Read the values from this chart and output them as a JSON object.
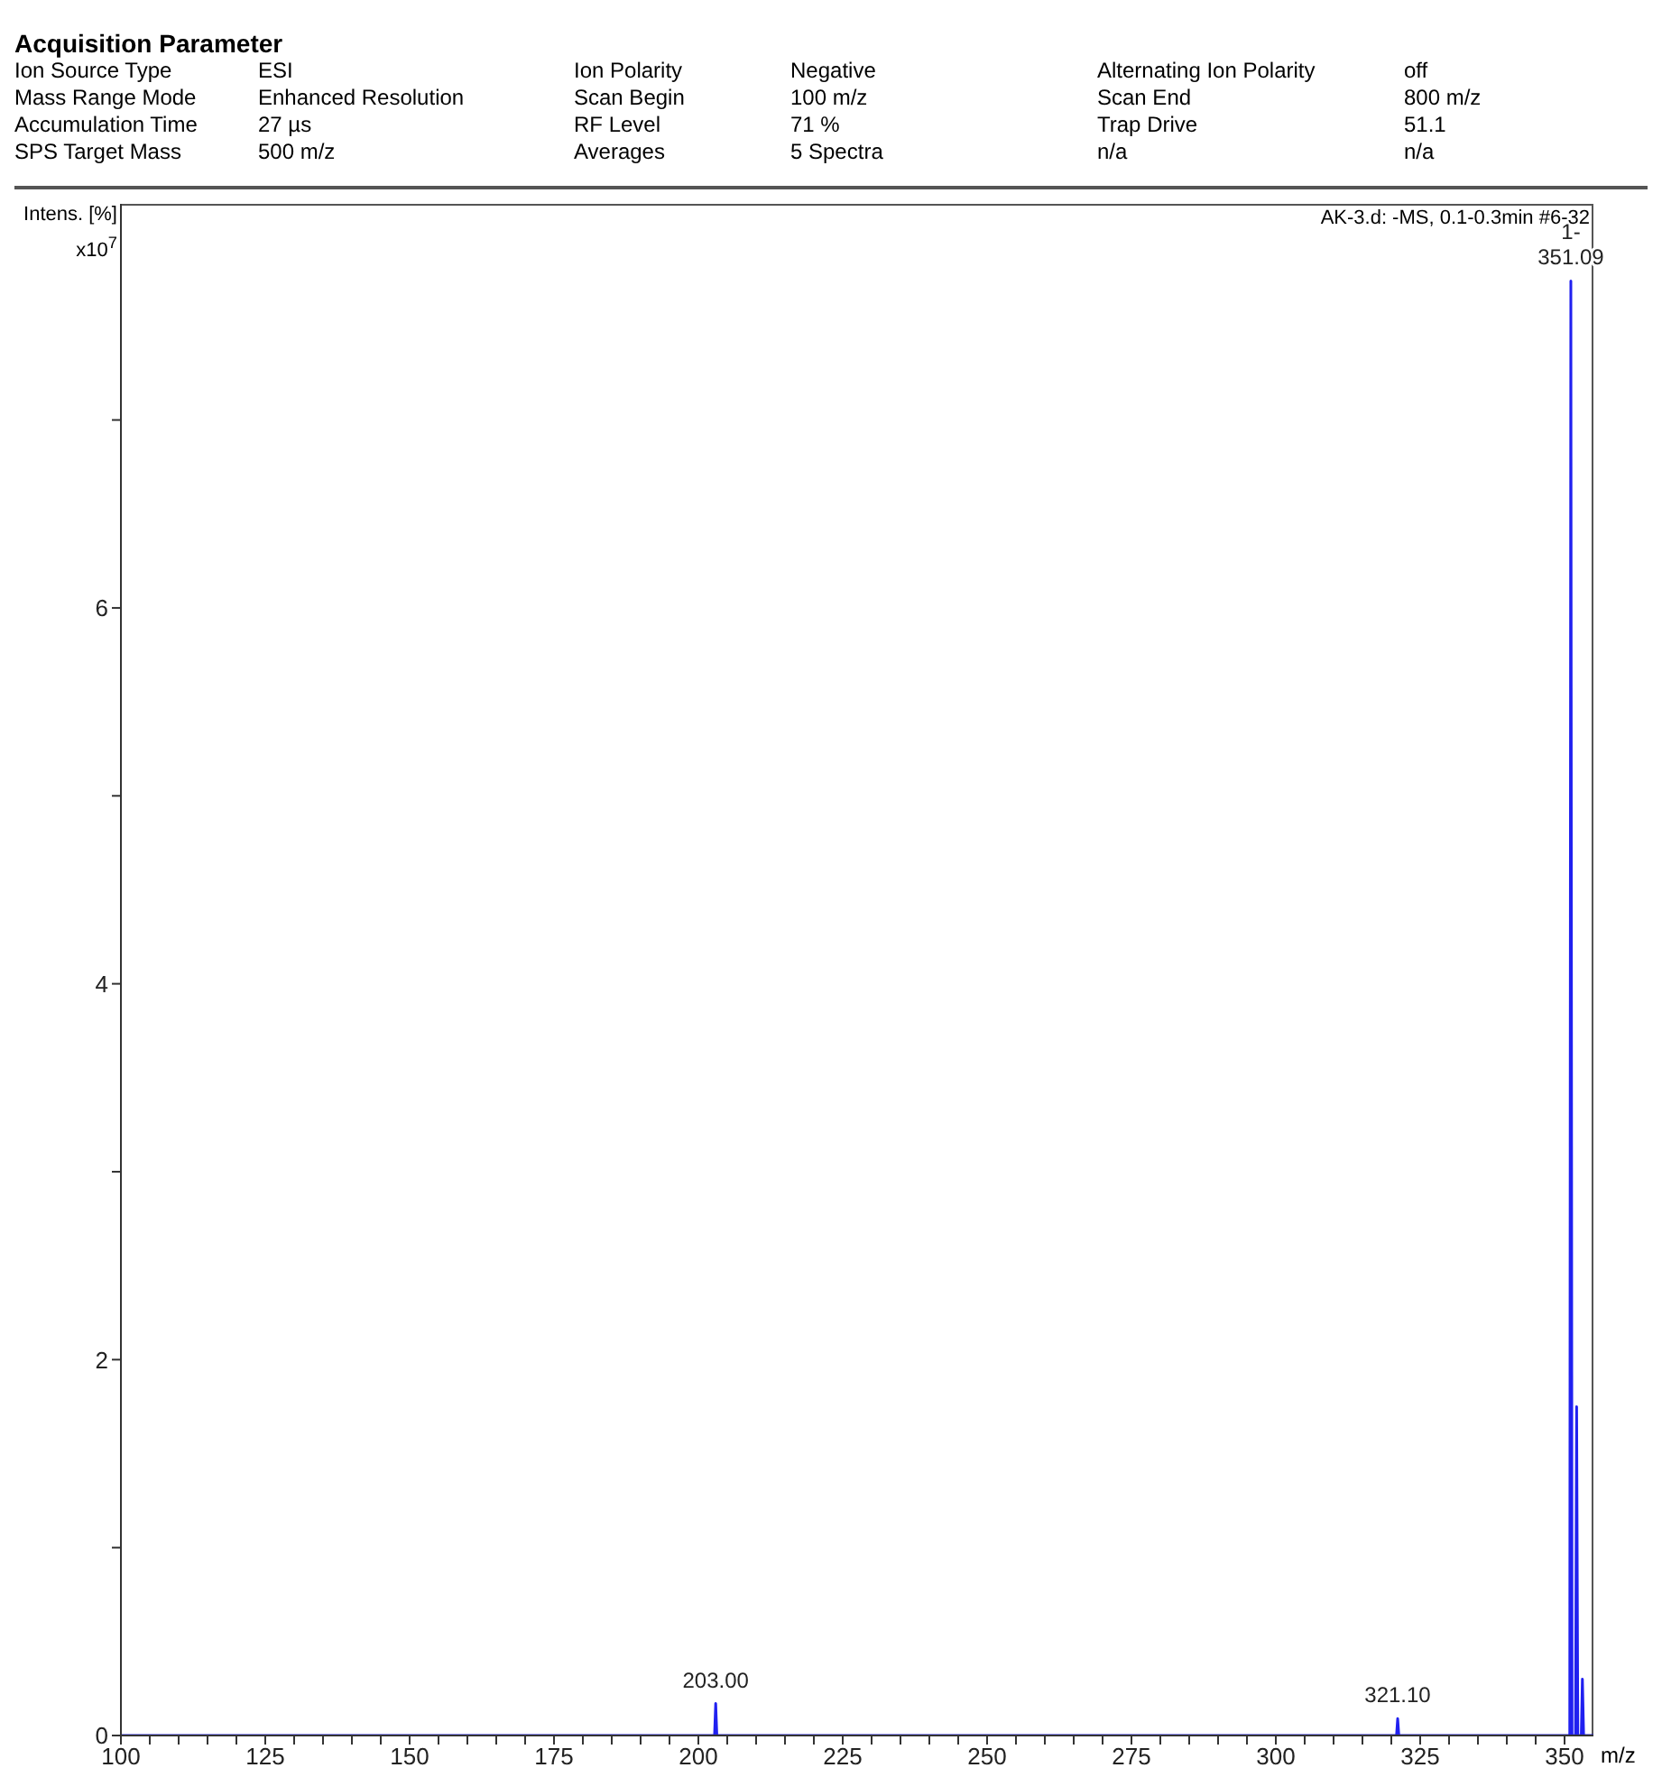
{
  "chart_data": {
    "type": "line",
    "title": "Acquisition Parameter",
    "xlabel": "m/z",
    "ylabel": "Intens. [%]",
    "annotations": [
      "Ion Source Type",
      "ESI",
      "Ion Polarity",
      "Negative",
      "Alternating Ion Polarity",
      "off",
      "Mass Range Mode",
      "Enhanced Resolution",
      "Scan Begin",
      "100 m/z",
      "Scan End",
      "800 m/z",
      "Accumulation Time",
      "27 µs",
      "RF Level",
      "71 %",
      "Trap Drive",
      "51.1",
      "SPS Target Mass",
      "500 m/z",
      "Averages",
      "5 Spectra",
      "n/a",
      "n/a",
      "AK-3.d: -MS, 0.1-0.3min #6-32",
      "x10$^{7}$",
      {
        "text": "351.09",
        "x": 351.09,
        "y": 7.74
      },
      {
        "text": "1-",
        "x": 351.09,
        "y": 7.74
      },
      {
        "text": "203.00",
        "x": 203.0,
        "y": 0.17
      },
      {
        "text": "321.10",
        "x": 321.1,
        "y": 0.09
      }
    ],
    "x": [
      100,
      202.8,
      203.0,
      203.2,
      320.9,
      321.1,
      321.3,
      350.9,
      351.09,
      351.3,
      351.9,
      352.09,
      352.3,
      352.9,
      353.09,
      353.3,
      354,
      355
    ],
    "series": [
      {
        "color": "#2020f0",
        "values": [
          0,
          0,
          0.17,
          0,
          0,
          0.09,
          0,
          0,
          7.74,
          0,
          0,
          1.75,
          0,
          0,
          0.3,
          0,
          0,
          0
        ]
      }
    ],
    "xlim": [
      100,
      355
    ],
    "xticks": [
      100,
      {
        "value": 105,
        "label": null
      },
      {
        "value": 110,
        "label": null
      },
      {
        "value": 115,
        "label": null
      },
      {
        "value": 120,
        "label": null
      },
      125,
      {
        "value": 130,
        "label": null
      },
      {
        "value": 135,
        "label": null
      },
      {
        "value": 140,
        "label": null
      },
      {
        "value": 145,
        "label": null
      },
      150,
      {
        "value": 155,
        "label": null
      },
      {
        "value": 160,
        "label": null
      },
      {
        "value": 165,
        "label": null
      },
      {
        "value": 170,
        "label": null
      },
      175,
      {
        "value": 180,
        "label": null
      },
      {
        "value": 185,
        "label": null
      },
      {
        "value": 190,
        "label": null
      },
      {
        "value": 195,
        "label": null
      },
      200,
      {
        "value": 205,
        "label": null
      },
      {
        "value": 210,
        "label": null
      },
      {
        "value": 215,
        "label": null
      },
      {
        "value": 220,
        "label": null
      },
      225,
      {
        "value": 230,
        "label": null
      },
      {
        "value": 235,
        "label": null
      },
      {
        "value": 240,
        "label": null
      },
      {
        "value": 245,
        "label": null
      },
      250,
      {
        "value": 255,
        "label": null
      },
      {
        "value": 260,
        "label": null
      },
      {
        "value": 265,
        "label": null
      },
      {
        "value": 270,
        "label": null
      },
      275,
      {
        "value": 280,
        "label": null
      },
      {
        "value": 285,
        "label": null
      },
      {
        "value": 290,
        "label": null
      },
      {
        "value": 295,
        "label": null
      },
      300,
      {
        "value": 305,
        "label": null
      },
      {
        "value": 310,
        "label": null
      },
      {
        "value": 315,
        "label": null
      },
      {
        "value": 320,
        "label": null
      },
      325,
      {
        "value": 330,
        "label": null
      },
      {
        "value": 335,
        "label": null
      },
      {
        "value": 340,
        "label": null
      },
      {
        "value": 345,
        "label": null
      },
      350
    ],
    "ylim": [
      0,
      8.15
    ],
    "yticks": [
      0,
      {
        "value": 1,
        "label": null
      },
      2,
      {
        "value": 3,
        "label": null
      },
      4,
      {
        "value": 5,
        "label": null
      },
      6,
      {
        "value": 7,
        "label": null
      }
    ],
    "grid": false,
    "legend": false,
    "marker": "none",
    "line_style": "solid"
  }
}
